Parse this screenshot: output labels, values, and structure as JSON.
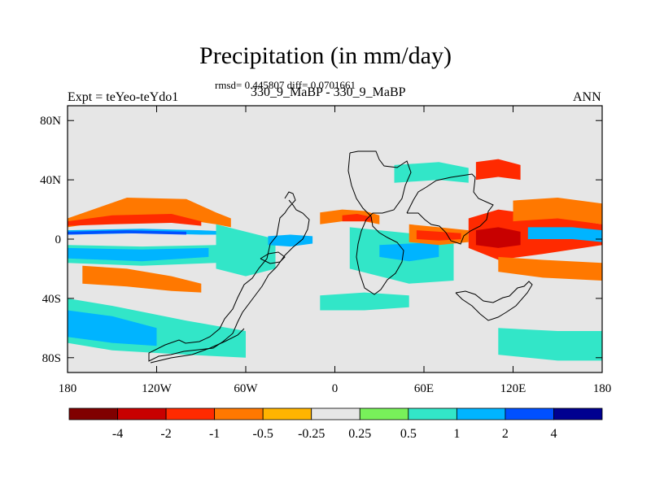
{
  "chart_data": {
    "type": "heatmap",
    "title": "Precipitation (in mm/day)",
    "stats": "rmsd= 0.445807 diff= 0.0701661",
    "subtitle": "330_9_MaBP - 330_9_MaBP",
    "left_label": "Expt = teYeo-teYdo1",
    "right_label": "ANN",
    "xlim": [
      -180,
      180
    ],
    "ylim": [
      -90,
      90
    ],
    "x_ticks": [
      {
        "value": -180,
        "label": "180"
      },
      {
        "value": -120,
        "label": "120W"
      },
      {
        "value": -60,
        "label": "60W"
      },
      {
        "value": 0,
        "label": "0"
      },
      {
        "value": 60,
        "label": "60E"
      },
      {
        "value": 120,
        "label": "120E"
      },
      {
        "value": 180,
        "label": "180"
      }
    ],
    "y_ticks": [
      {
        "value": 80,
        "label": "80N"
      },
      {
        "value": 40,
        "label": "40N"
      },
      {
        "value": 0,
        "label": "0"
      },
      {
        "value": -40,
        "label": "40S"
      },
      {
        "value": -80,
        "label": "80S"
      }
    ],
    "colorbar": {
      "colors": [
        "#800000",
        "#c80000",
        "#ff2a00",
        "#ff7800",
        "#ffb400",
        "#e6e6e6",
        "#78f05a",
        "#32e6c8",
        "#00b4ff",
        "#0050ff",
        "#000090"
      ],
      "labels": [
        "-4",
        "-2",
        "-1",
        "-0.5",
        "-0.25",
        "0.25",
        "0.5",
        "1",
        "2",
        "4"
      ]
    },
    "anomalies": [
      {
        "name": "pacific-n-band-orange",
        "lon": [
          -180,
          -140,
          -100,
          -80,
          -70
        ],
        "lat": [
          14,
          28,
          27,
          18,
          14
        ],
        "lat_s": [
          8,
          14,
          13,
          10,
          8
        ],
        "class": "-0.5"
      },
      {
        "name": "pacific-n-band-red",
        "lon": [
          -180,
          -150,
          -110,
          -90
        ],
        "lat": [
          12,
          16,
          17,
          12
        ],
        "lat_s": [
          9,
          10,
          11,
          9
        ],
        "class": "-1"
      },
      {
        "name": "pacific-eq-cyan",
        "lon": [
          -180,
          -130,
          -90,
          -70
        ],
        "lat": [
          6,
          7,
          6,
          5
        ],
        "lat_s": [
          3,
          4,
          3,
          3
        ],
        "class": "1"
      },
      {
        "name": "pacific-eq-blue",
        "lon": [
          -180,
          -140,
          -100
        ],
        "lat": [
          5,
          6,
          5
        ],
        "lat_s": [
          3,
          4,
          3
        ],
        "class": "2"
      },
      {
        "name": "pacific-s-green",
        "lon": [
          -180,
          -130,
          -80,
          -70
        ],
        "lat": [
          -4,
          -5,
          -4,
          -2
        ],
        "lat_s": [
          -16,
          -18,
          -16,
          -10
        ],
        "class": "0.5"
      },
      {
        "name": "pacific-s-cyan",
        "lon": [
          -180,
          -130,
          -85
        ],
        "lat": [
          -6,
          -7,
          -6
        ],
        "lat_s": [
          -13,
          -15,
          -12
        ],
        "class": "1"
      },
      {
        "name": "pacific-south-orange",
        "lon": [
          -170,
          -140,
          -110,
          -90
        ],
        "lat": [
          -18,
          -20,
          -25,
          -30
        ],
        "lat_s": [
          -30,
          -32,
          -35,
          -36
        ],
        "class": "-0.5"
      },
      {
        "name": "pacific-sw-green",
        "lon": [
          -180,
          -150,
          -100,
          -60
        ],
        "lat": [
          -40,
          -45,
          -55,
          -62
        ],
        "lat_s": [
          -70,
          -75,
          -78,
          -80
        ],
        "class": "0.5"
      },
      {
        "name": "pacific-sw-cyan",
        "lon": [
          -180,
          -150,
          -120
        ],
        "lat": [
          -48,
          -52,
          -60
        ],
        "lat_s": [
          -66,
          -70,
          -72
        ],
        "class": "1"
      },
      {
        "name": "amazon-green",
        "lon": [
          -80,
          -60,
          -40
        ],
        "lat": [
          10,
          5,
          0
        ],
        "lat_s": [
          -20,
          -25,
          -20
        ],
        "class": "0.5"
      },
      {
        "name": "atlantic-eq-cyan",
        "lon": [
          -45,
          -30,
          -15
        ],
        "lat": [
          2,
          3,
          2
        ],
        "lat_s": [
          -4,
          -5,
          -3
        ],
        "class": "1"
      },
      {
        "name": "sahel-orange",
        "lon": [
          -10,
          5,
          20,
          30
        ],
        "lat": [
          18,
          20,
          19,
          16
        ],
        "lat_s": [
          10,
          12,
          12,
          10
        ],
        "class": "-0.5"
      },
      {
        "name": "sahel-red",
        "lon": [
          5,
          15,
          25
        ],
        "lat": [
          16,
          17,
          15
        ],
        "lat_s": [
          12,
          12,
          12
        ],
        "class": "-1"
      },
      {
        "name": "africa-eq-green",
        "lon": [
          10,
          30,
          50,
          80
        ],
        "lat": [
          8,
          6,
          4,
          2
        ],
        "lat_s": [
          -20,
          -25,
          -30,
          -28
        ],
        "class": "0.5"
      },
      {
        "name": "indian-ocean-cyan",
        "lon": [
          30,
          50,
          70
        ],
        "lat": [
          -4,
          -3,
          -2
        ],
        "lat_s": [
          -12,
          -15,
          -12
        ],
        "class": "1"
      },
      {
        "name": "india-orange",
        "lon": [
          50,
          70,
          90
        ],
        "lat": [
          10,
          8,
          6
        ],
        "lat_s": [
          -2,
          -4,
          -2
        ],
        "class": "-0.5"
      },
      {
        "name": "india-red",
        "lon": [
          55,
          70,
          85
        ],
        "lat": [
          6,
          5,
          4
        ],
        "lat_s": [
          0,
          -1,
          0
        ],
        "class": "-1"
      },
      {
        "name": "maritime-red",
        "lon": [
          90,
          110,
          140,
          180
        ],
        "lat": [
          14,
          20,
          16,
          10
        ],
        "lat_s": [
          -6,
          -14,
          -10,
          -4
        ],
        "class": "-1"
      },
      {
        "name": "maritime-darkred",
        "lon": [
          95,
          110,
          125
        ],
        "lat": [
          6,
          8,
          5
        ],
        "lat_s": [
          -4,
          -6,
          -4
        ],
        "class": "-2"
      },
      {
        "name": "maritime-orange",
        "lon": [
          120,
          150,
          180
        ],
        "lat": [
          26,
          28,
          24
        ],
        "lat_s": [
          12,
          14,
          10
        ],
        "class": "-0.5"
      },
      {
        "name": "wpac-cyan",
        "lon": [
          130,
          160,
          180
        ],
        "lat": [
          8,
          8,
          6
        ],
        "lat_s": [
          0,
          0,
          -2
        ],
        "class": "1"
      },
      {
        "name": "spcz-orange",
        "lon": [
          110,
          140,
          180
        ],
        "lat": [
          -12,
          -14,
          -16
        ],
        "lat_s": [
          -22,
          -26,
          -28
        ],
        "class": "-0.5"
      },
      {
        "name": "asia-n-red",
        "lon": [
          95,
          110,
          125
        ],
        "lat": [
          52,
          54,
          50
        ],
        "lat_s": [
          40,
          42,
          40
        ],
        "class": "-1"
      },
      {
        "name": "asia-n-green",
        "lon": [
          40,
          70,
          90
        ],
        "lat": [
          50,
          52,
          48
        ],
        "lat_s": [
          38,
          40,
          38
        ],
        "class": "0.5"
      },
      {
        "name": "se-pacific-green",
        "lon": [
          110,
          150,
          180
        ],
        "lat": [
          -60,
          -62,
          -62
        ],
        "lat_s": [
          -78,
          -82,
          -82
        ],
        "class": "0.5"
      },
      {
        "name": "south-atlantic-green",
        "lon": [
          -10,
          20,
          50
        ],
        "lat": [
          -38,
          -36,
          -38
        ],
        "lat_s": [
          -48,
          -48,
          -46
        ],
        "class": "0.5"
      }
    ]
  }
}
